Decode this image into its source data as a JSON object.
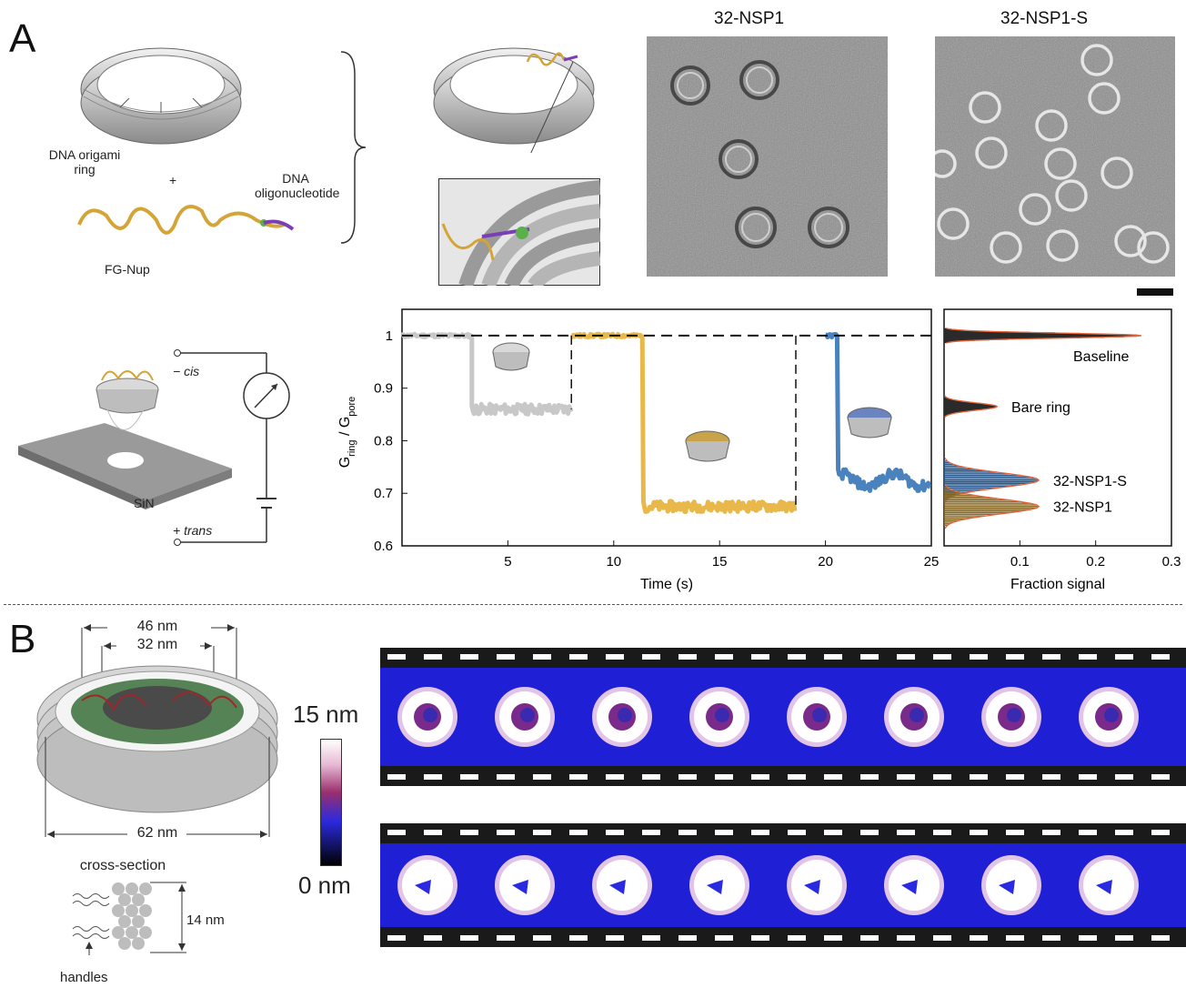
{
  "panel_a": {
    "letter": "A",
    "ring_label": "DNA origami\nring",
    "plus": "+",
    "oligo_label": "DNA\noligonucleotide",
    "fgnup_label": "FG-Nup",
    "em_titles": [
      "32-NSP1",
      "32-NSP1-S"
    ],
    "circuit": {
      "cis": "− cis",
      "trans": "+ trans",
      "sin": "SiN"
    }
  },
  "panel_b": {
    "letter": "B",
    "dim_46": "46 nm",
    "dim_32": "32 nm",
    "dim_62": "62 nm",
    "cross_section": "cross-section",
    "dim_14": "14 nm",
    "handles": "handles",
    "colorbar_top": "15 nm",
    "colorbar_bottom": "0 nm"
  },
  "colors": {
    "gray": "#c8c8c8",
    "gold": "#e8b94a",
    "blue": "#4a82bd",
    "hist_edge": "#e8653a",
    "afm_bg": "#1f1fd6"
  },
  "chart_data": [
    {
      "type": "line",
      "xlabel": "Time (s)",
      "ylabel": "G_ring / G_pore",
      "xlim": [
        0,
        25
      ],
      "ylim": [
        0.6,
        1.05
      ],
      "x_ticks": [
        5,
        10,
        15,
        20,
        25
      ],
      "y_ticks": [
        0.6,
        0.7,
        0.8,
        0.9,
        1
      ],
      "x_tick_labels": [
        "5",
        "10",
        "15",
        "20",
        "25"
      ],
      "y_tick_labels": [
        "0.6",
        "0.7",
        "0.8",
        "0.9",
        "1"
      ],
      "baseline": 1,
      "segments": [
        {
          "color": "gray",
          "start": 0,
          "drop": 3.3,
          "end": 8.0,
          "base": 1.0,
          "level": 0.86
        },
        {
          "color": "gold",
          "start": 8.0,
          "drop": 11.4,
          "end": 18.6,
          "base": 1.0,
          "level": 0.675
        },
        {
          "color": "blue",
          "start": 20.0,
          "drop": 20.6,
          "end": 25.0,
          "base": 1.0,
          "level": 0.725
        }
      ]
    },
    {
      "type": "bar",
      "xlabel": "Fraction signal",
      "xlim": [
        0,
        0.3
      ],
      "x_ticks": [
        0.1,
        0.2,
        0.3
      ],
      "x_tick_labels": [
        "0.1",
        "0.2",
        "0.3"
      ],
      "peaks": [
        {
          "name": "Baseline",
          "center": 1.0,
          "height": 0.26,
          "width": 0.004
        },
        {
          "name": "Bare ring",
          "center": 0.865,
          "height": 0.07,
          "width": 0.006
        },
        {
          "name": "32-NSP1-S",
          "center": 0.725,
          "height": 0.125,
          "width": 0.012
        },
        {
          "name": "32-NSP1",
          "center": 0.675,
          "height": 0.125,
          "width": 0.012
        }
      ]
    }
  ]
}
